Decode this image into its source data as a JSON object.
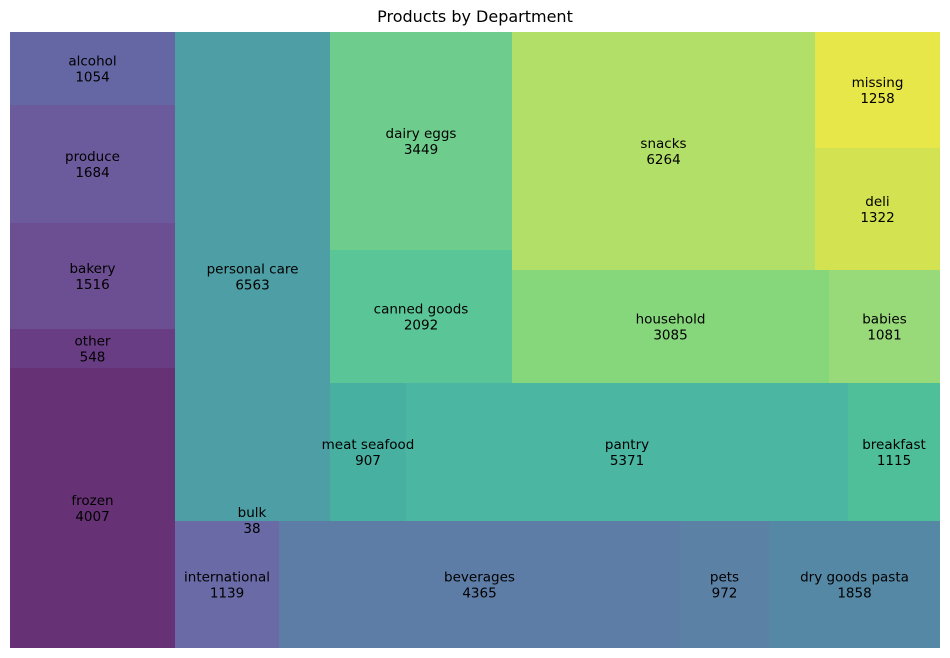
{
  "chart_data": {
    "type": "treemap",
    "title": "Products by Department",
    "colormap": "viridis",
    "grid": false,
    "legend": "none",
    "items": [
      {
        "label": "alcohol",
        "value": 1054,
        "color": "#6567a5"
      },
      {
        "label": "produce",
        "value": 1684,
        "color": "#6c5b9c"
      },
      {
        "label": "bakery",
        "value": 1516,
        "color": "#6c4f92"
      },
      {
        "label": "other",
        "value": 548,
        "color": "#693d84"
      },
      {
        "label": "frozen",
        "value": 4007,
        "color": "#663275"
      },
      {
        "label": "personal care",
        "value": 6563,
        "color": "#4d9ea5"
      },
      {
        "label": "bulk",
        "value": 38,
        "color": "#4d9ea5"
      },
      {
        "label": "international",
        "value": 1139,
        "color": "#6a6aa6"
      },
      {
        "label": "beverages",
        "value": 4365,
        "color": "#5d7ca6"
      },
      {
        "label": "pets",
        "value": 972,
        "color": "#5b81a5"
      },
      {
        "label": "dry goods pasta",
        "value": 1858,
        "color": "#5588a4"
      },
      {
        "label": "dairy eggs",
        "value": 3449,
        "color": "#6ecd8c"
      },
      {
        "label": "canned goods",
        "value": 2092,
        "color": "#5ac596"
      },
      {
        "label": "meat seafood",
        "value": 907,
        "color": "#47b0a0"
      },
      {
        "label": "pantry",
        "value": 5371,
        "color": "#4bb7a2"
      },
      {
        "label": "breakfast",
        "value": 1115,
        "color": "#4fbf9a"
      },
      {
        "label": "snacks",
        "value": 6264,
        "color": "#b2df68"
      },
      {
        "label": "household",
        "value": 3085,
        "color": "#86d67c"
      },
      {
        "label": "babies",
        "value": 1081,
        "color": "#98d97a"
      },
      {
        "label": "missing",
        "value": 1258,
        "color": "#e7e749"
      },
      {
        "label": "deli",
        "value": 1322,
        "color": "#d2e250"
      }
    ]
  }
}
